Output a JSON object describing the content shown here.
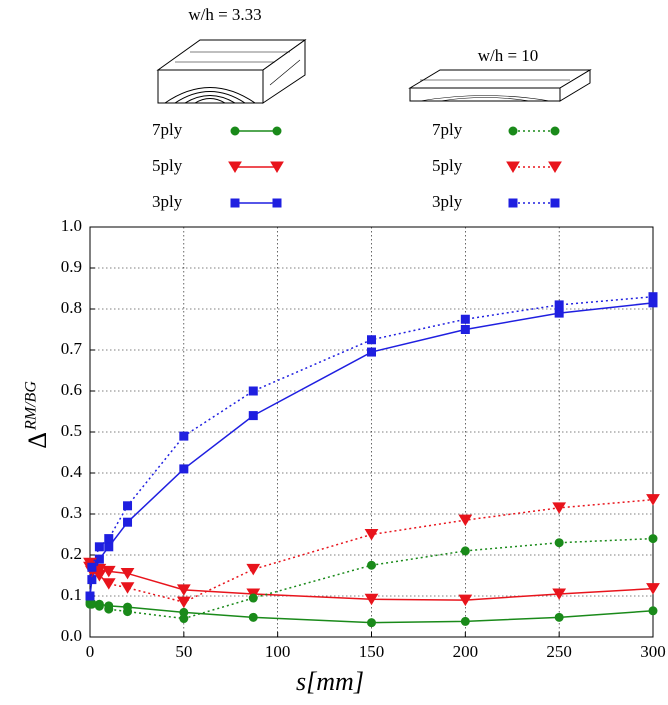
{
  "chart_data": {
    "type": "line",
    "x_label": "s[mm]",
    "y_label": "Δ",
    "y_label_sup": "RM/BG",
    "legend_groups": [
      {
        "title": "w/h = 3.33",
        "dash": "solid"
      },
      {
        "title": "w/h = 10",
        "dash": "dotted"
      }
    ],
    "x": [
      0,
      1,
      5,
      10,
      20,
      50,
      87,
      150,
      200,
      250,
      300
    ],
    "xlim": [
      0,
      300
    ],
    "xticks": [
      0,
      50,
      100,
      150,
      200,
      250,
      300
    ],
    "ylim": [
      0,
      1
    ],
    "yticks": [
      {
        "value": 0,
        "label": "0.0"
      },
      0.1,
      0.2,
      0.3,
      0.4,
      0.5,
      0.6,
      0.7,
      0.8,
      0.9,
      {
        "value": 1,
        "label": "1.0"
      }
    ],
    "grid": true,
    "series": [
      {
        "name": "7ply",
        "group": 0,
        "color": "#1a8a1a",
        "marker": "circle",
        "values": [
          0.085,
          0.082,
          0.08,
          0.076,
          0.073,
          0.06,
          0.048,
          0.035,
          0.038,
          0.048,
          0.064
        ]
      },
      {
        "name": "5ply",
        "group": 0,
        "color": "#e8141c",
        "marker": "triangle",
        "values": [
          0.17,
          0.17,
          0.165,
          0.16,
          0.155,
          0.115,
          0.105,
          0.092,
          0.09,
          0.105,
          0.118
        ]
      },
      {
        "name": "3ply",
        "group": 0,
        "color": "#1f1fe0",
        "marker": "square",
        "values": [
          0.1,
          0.14,
          0.19,
          0.22,
          0.28,
          0.41,
          0.54,
          0.695,
          0.75,
          0.79,
          0.815
        ]
      },
      {
        "name": "7ply",
        "group": 1,
        "color": "#1a8a1a",
        "marker": "circle",
        "values": [
          0.08,
          0.08,
          0.075,
          0.068,
          0.062,
          0.045,
          0.095,
          0.175,
          0.21,
          0.23,
          0.24
        ]
      },
      {
        "name": "5ply",
        "group": 1,
        "color": "#e8141c",
        "marker": "triangle",
        "values": [
          0.18,
          0.16,
          0.15,
          0.13,
          0.12,
          0.085,
          0.165,
          0.25,
          0.285,
          0.315,
          0.335
        ]
      },
      {
        "name": "3ply",
        "group": 1,
        "color": "#1f1fe0",
        "marker": "square",
        "values": [
          0.1,
          0.17,
          0.22,
          0.24,
          0.32,
          0.49,
          0.6,
          0.725,
          0.775,
          0.81,
          0.83
        ]
      }
    ]
  }
}
